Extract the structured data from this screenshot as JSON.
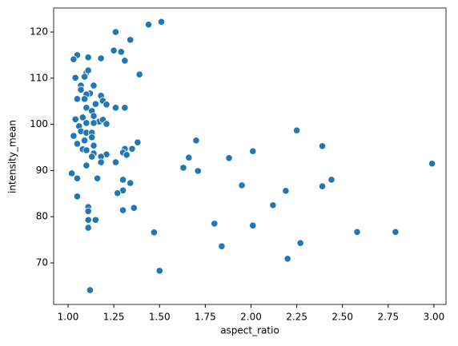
{
  "chart_data": {
    "type": "scatter",
    "x_label": "aspect_ratio",
    "y_label": "intensity_mean",
    "color": "#1f77b4",
    "x": [
      1.05,
      1.03,
      1.11,
      1.18,
      1.1,
      1.11,
      1.09,
      1.04,
      1.07,
      1.14,
      1.07,
      1.12,
      1.1,
      1.18,
      1.05,
      1.09,
      1.19,
      1.15,
      1.21,
      1.26,
      1.31,
      1.1,
      1.13,
      1.14,
      1.04,
      1.08,
      1.17,
      1.19,
      1.21,
      1.1,
      1.14,
      1.06,
      1.07,
      1.1,
      1.13,
      1.03,
      1.13,
      1.09,
      1.05,
      1.14,
      1.38,
      1.08,
      1.1,
      1.31,
      1.35,
      1.3,
      1.14,
      1.21,
      1.32,
      1.13,
      1.18,
      1.26,
      1.18,
      1.1,
      1.02,
      1.05,
      1.16,
      1.3,
      1.34,
      1.3,
      1.27,
      1.05,
      1.11,
      1.11,
      1.36,
      1.3,
      1.11,
      1.15,
      1.11,
      1.12,
      1.44,
      1.51,
      1.26,
      1.34,
      1.25,
      1.29,
      1.31,
      1.39,
      1.47,
      1.5,
      1.63,
      1.66,
      1.7,
      1.71,
      1.8,
      1.84,
      1.88,
      1.95,
      2.01,
      2.01,
      2.12,
      2.19,
      2.2,
      2.25,
      2.27,
      2.39,
      2.39,
      2.44,
      2.58,
      2.79,
      2.99
    ],
    "values": [
      115.0,
      114.1,
      114.5,
      114.3,
      111.2,
      111.7,
      110.3,
      110.1,
      108.4,
      108.4,
      107.5,
      106.7,
      106.5,
      106.2,
      105.5,
      105.5,
      105.1,
      104.4,
      104.3,
      103.6,
      103.6,
      103.6,
      102.9,
      101.8,
      101.1,
      101.5,
      100.6,
      101.0,
      100.1,
      100.3,
      100.3,
      99.6,
      98.5,
      98.2,
      98.2,
      97.5,
      97.2,
      96.5,
      95.8,
      95.4,
      96.1,
      94.6,
      94.4,
      94.7,
      94.7,
      93.9,
      93.7,
      93.5,
      93.4,
      93.0,
      93.0,
      91.8,
      91.8,
      91.1,
      89.4,
      88.3,
      88.3,
      88.0,
      87.3,
      85.7,
      85.1,
      84.4,
      82.1,
      81.2,
      81.9,
      81.4,
      79.3,
      79.3,
      77.6,
      64.1,
      121.6,
      122.2,
      120.0,
      118.3,
      116.0,
      115.7,
      113.8,
      110.8,
      76.6,
      68.3,
      90.6,
      92.8,
      96.5,
      89.9,
      78.5,
      73.6,
      92.7,
      86.8,
      94.2,
      78.1,
      82.5,
      85.6,
      70.9,
      98.7,
      74.3,
      95.3,
      86.6,
      88.0,
      76.7,
      76.7,
      91.5
    ],
    "xlim": [
      0.921,
      3.066
    ],
    "ylim": [
      61.0,
      125.2
    ],
    "xticks": [
      {
        "value": 1.0,
        "label": "1.00"
      },
      {
        "value": 1.25,
        "label": "1.25"
      },
      {
        "value": 1.5,
        "label": "1.50"
      },
      {
        "value": 1.75,
        "label": "1.75"
      },
      {
        "value": 2.0,
        "label": "2.00"
      },
      {
        "value": 2.25,
        "label": "2.25"
      },
      {
        "value": 2.5,
        "label": "2.50"
      },
      {
        "value": 2.75,
        "label": "2.75"
      },
      {
        "value": 3.0,
        "label": "3.00"
      }
    ],
    "yticks": [
      70,
      80,
      90,
      100,
      110,
      120
    ]
  }
}
